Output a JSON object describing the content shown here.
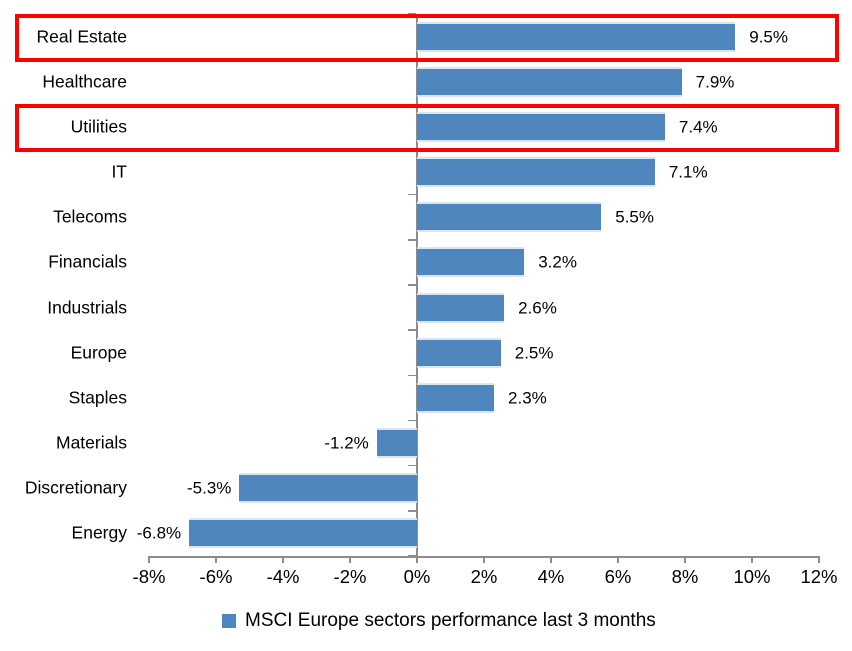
{
  "chart_data": {
    "type": "bar",
    "orientation": "horizontal",
    "legend": "MSCI Europe sectors performance last 3 months",
    "legend_position": "bottom",
    "grid": false,
    "categories": [
      "Real Estate",
      "Healthcare",
      "Utilities",
      "IT",
      "Telecoms",
      "Financials",
      "Industrials",
      "Europe",
      "Staples",
      "Materials",
      "Discretionary",
      "Energy"
    ],
    "values": [
      9.5,
      7.9,
      7.4,
      7.1,
      5.5,
      3.2,
      2.6,
      2.5,
      2.3,
      -1.2,
      -5.3,
      -6.8
    ],
    "value_labels": [
      "9.5%",
      "7.9%",
      "7.4%",
      "7.1%",
      "5.5%",
      "3.2%",
      "2.6%",
      "2.5%",
      "2.3%",
      "-1.2%",
      "-5.3%",
      "-6.8%"
    ],
    "x_axis": {
      "min": -8,
      "max": 12,
      "ticks": [
        {
          "label": "-8%",
          "value": -8
        },
        {
          "label": "-6%",
          "value": -6
        },
        {
          "label": "-4%",
          "value": -4
        },
        {
          "label": "-2%",
          "value": -2
        },
        {
          "label": "0%",
          "value": 0
        },
        {
          "label": "2%",
          "value": 2
        },
        {
          "label": "4%",
          "value": 4
        },
        {
          "label": "6%",
          "value": 6
        },
        {
          "label": "8%",
          "value": 8
        },
        {
          "label": "10%",
          "value": 10
        },
        {
          "label": "12%",
          "value": 12
        }
      ]
    },
    "highlighted_categories": [
      "Real Estate",
      "Utilities"
    ],
    "highlight_indexes": [
      0,
      2
    ],
    "colors": {
      "bar": "#4E86BD",
      "bar_edge": "#D9E5F1",
      "highlight_border": "#FF0000",
      "axis": "#8C8C8C",
      "text": "#000000",
      "background": "#FFFFFF"
    }
  }
}
